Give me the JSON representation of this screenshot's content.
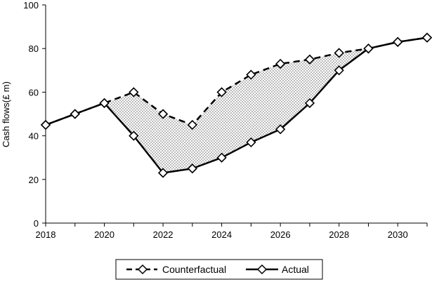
{
  "chart_data": {
    "type": "line",
    "title": "",
    "xlabel": "",
    "ylabel": "Cash flows(£ m)",
    "xlim": [
      2018,
      2031
    ],
    "ylim": [
      0,
      100
    ],
    "x_ticks": [
      "2018",
      "2020",
      "2022",
      "2024",
      "2026",
      "2028",
      "2030"
    ],
    "y_ticks": [
      "0",
      "20",
      "40",
      "60",
      "80",
      "100"
    ],
    "grid": false,
    "legend_position": "bottom-center",
    "shaded_region": "area between Counterfactual and Actual (dotted fill)",
    "series": [
      {
        "name": "Counterfactual",
        "style": "dashed",
        "marker": "diamond",
        "x": [
          2018,
          2019,
          2020,
          2021,
          2022,
          2023,
          2024,
          2025,
          2026,
          2027,
          2028,
          2029,
          2030,
          2031
        ],
        "y": [
          45,
          50,
          55,
          60,
          50,
          45,
          60,
          68,
          73,
          75,
          78,
          80,
          83,
          85
        ]
      },
      {
        "name": "Actual",
        "style": "solid",
        "marker": "diamond",
        "x": [
          2018,
          2019,
          2020,
          2021,
          2022,
          2023,
          2024,
          2025,
          2026,
          2027,
          2028,
          2029,
          2030,
          2031
        ],
        "y": [
          45,
          50,
          55,
          40,
          23,
          25,
          30,
          37,
          43,
          55,
          70,
          80,
          83,
          85
        ]
      }
    ],
    "colors": {
      "line": "#000000",
      "marker_fill": "#ffffff",
      "shade_dot": "#555555"
    }
  }
}
